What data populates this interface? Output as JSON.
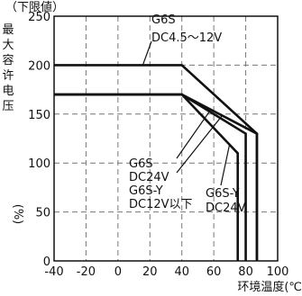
{
  "chart_data": {
    "type": "line",
    "title": "",
    "header_text": "（下限値）",
    "ylabel_chars": [
      "最",
      "大",
      "容",
      "许",
      "电",
      "压"
    ],
    "ylabel_unit": "(%)",
    "xlabel": "环境温度(℃",
    "xlim": [
      -40,
      100
    ],
    "ylim": [
      0,
      250
    ],
    "xticks": [
      -40,
      -20,
      0,
      20,
      40,
      60,
      80,
      100
    ],
    "yticks": [
      0,
      50,
      100,
      150,
      200,
      250
    ],
    "grid": true,
    "series": [
      {
        "name": "G6S DC4.5～12V",
        "label_lines": [
          "G6S",
          "DC4.5～12V"
        ],
        "points": [
          [
            -40,
            200
          ],
          [
            40,
            200
          ],
          [
            87,
            130
          ],
          [
            87,
            0
          ]
        ]
      },
      {
        "name": "G6S DC24V / G6S-Y DC12V以下",
        "label_lines": [
          "G6S",
          "DC24V",
          "G6S-Y",
          "DC12V以下"
        ],
        "points": [
          [
            -40,
            170
          ],
          [
            40,
            170
          ],
          [
            87,
            130
          ],
          [
            87,
            0
          ]
        ]
      },
      {
        "name": "G6S DC24V / G6S-Y DC12V以下 (alt)",
        "label_lines": [],
        "points": [
          [
            -40,
            170
          ],
          [
            40,
            170
          ],
          [
            80,
            130
          ],
          [
            80,
            0
          ]
        ]
      },
      {
        "name": "G6S-Y DC24V",
        "label_lines": [
          "G6S-Y",
          "DC24V"
        ],
        "points": [
          [
            -40,
            170
          ],
          [
            40,
            170
          ],
          [
            75,
            110
          ],
          [
            75,
            0
          ]
        ]
      }
    ]
  }
}
